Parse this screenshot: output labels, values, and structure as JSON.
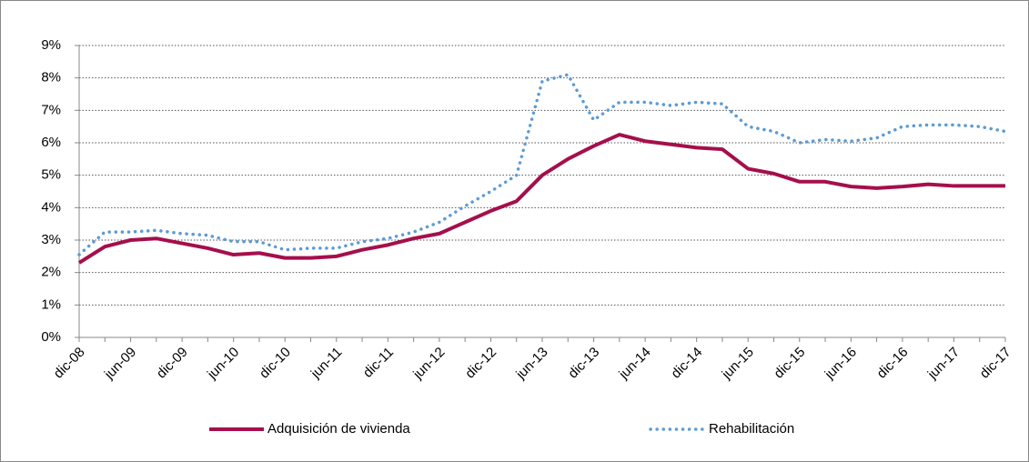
{
  "chart_data": {
    "type": "line",
    "categories": [
      "dic-08",
      null,
      "jun-09",
      null,
      "dic-09",
      null,
      "jun-10",
      null,
      "dic-10",
      null,
      "jun-11",
      null,
      "dic-11",
      null,
      "jun-12",
      null,
      "dic-12",
      null,
      "jun-13",
      null,
      "dic-13",
      null,
      "jun-14",
      null,
      "dic-14",
      null,
      "jun-15",
      null,
      "dic-15",
      null,
      "jun-16",
      null,
      "dic-16",
      null,
      "jun-17",
      null,
      "dic-17"
    ],
    "series": [
      {
        "name": "Adquisición de vivienda",
        "color": "#a50f4b",
        "style": "solid",
        "values": [
          2.3,
          2.8,
          3.0,
          3.05,
          2.9,
          2.75,
          2.55,
          2.6,
          2.45,
          2.45,
          2.5,
          2.7,
          2.85,
          3.05,
          3.2,
          3.55,
          3.9,
          4.2,
          5.0,
          5.5,
          5.9,
          6.25,
          6.05,
          5.95,
          5.85,
          5.8,
          5.2,
          5.05,
          4.8,
          4.8,
          4.65,
          4.6,
          4.65,
          4.72,
          4.67,
          4.67,
          4.67
        ]
      },
      {
        "name": "Rehabilitación",
        "color": "#5b9bd5",
        "style": "dotted",
        "values": [
          2.55,
          3.25,
          3.25,
          3.3,
          3.2,
          3.15,
          2.95,
          2.95,
          2.7,
          2.75,
          2.75,
          2.95,
          3.05,
          3.25,
          3.55,
          4.05,
          4.5,
          5.0,
          7.9,
          8.1,
          6.7,
          7.25,
          7.25,
          7.15,
          7.25,
          7.2,
          6.5,
          6.35,
          6.0,
          6.1,
          6.05,
          6.15,
          6.5,
          6.55,
          6.55,
          6.5,
          6.35
        ]
      }
    ],
    "ylim": [
      0,
      9
    ],
    "yticks": [
      {
        "value": 0,
        "label": "0%"
      },
      {
        "value": 1,
        "label": "1%"
      },
      {
        "value": 2,
        "label": "2%"
      },
      {
        "value": 3,
        "label": "3%"
      },
      {
        "value": 4,
        "label": "4%"
      },
      {
        "value": 5,
        "label": "5%"
      },
      {
        "value": 6,
        "label": "6%"
      },
      {
        "value": 7,
        "label": "7%"
      },
      {
        "value": 8,
        "label": "8%"
      },
      {
        "value": 9,
        "label": "9%"
      }
    ],
    "grid": true,
    "legend": "bottom"
  }
}
